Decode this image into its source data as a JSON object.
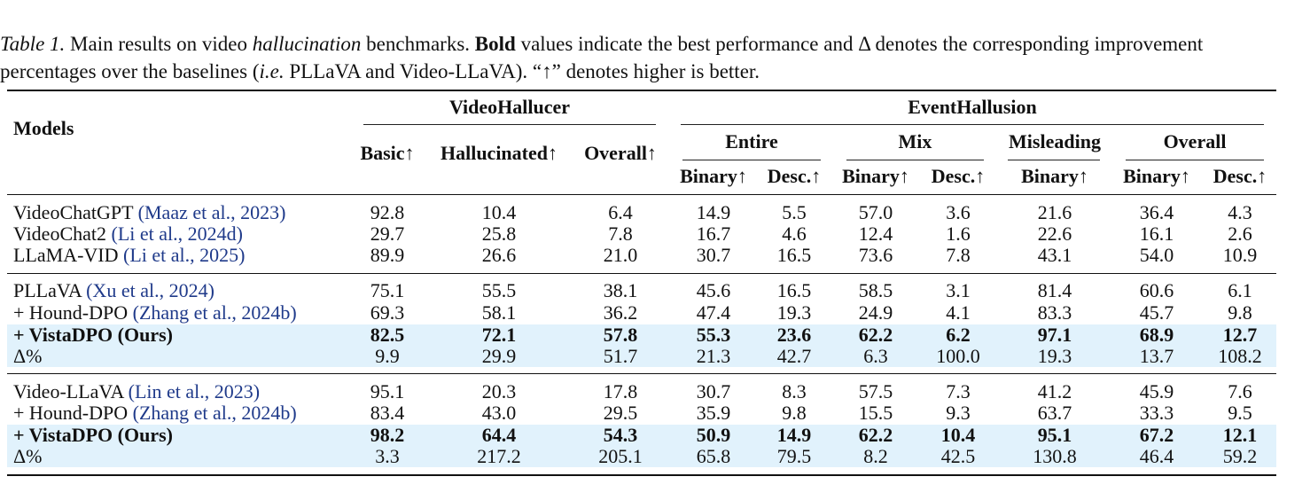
{
  "caption": {
    "label": "Table 1.",
    "p1": " Main results on video ",
    "italic1": "hallucination",
    "p2": " benchmarks. ",
    "bold1": "Bold",
    "p3": " values indicate the best performance and Δ denotes the corresponding improvement percentages over the baselines (",
    "italic2": "i.e.",
    "p4": " PLLaVA and Video-LLaVA). “↑” denotes higher is better."
  },
  "headers": {
    "models": "Models",
    "videohallucer": "VideoHallucer",
    "eventhallusion": "EventHallusion",
    "basic": "Basic↑",
    "hallucinated": "Hallucinated↑",
    "overall": "Overall↑",
    "entire": "Entire",
    "mix": "Mix",
    "misleading": "Misleading",
    "overall2": "Overall",
    "binary": "Binary↑",
    "desc": "Desc.↑"
  },
  "rows": [
    {
      "name": "VideoChatGPT",
      "cite": "(Maaz et al., 2023)",
      "values": [
        "92.8",
        "10.4",
        "6.4",
        "14.9",
        "5.5",
        "57.0",
        "3.6",
        "21.6",
        "36.4",
        "4.3"
      ]
    },
    {
      "name": "VideoChat2",
      "cite": "(Li et al., 2024d)",
      "values": [
        "29.7",
        "25.8",
        "7.8",
        "16.7",
        "4.6",
        "12.4",
        "1.6",
        "22.6",
        "16.1",
        "2.6"
      ]
    },
    {
      "name": "LLaMA-VID",
      "cite": "(Li et al., 2025)",
      "values": [
        "89.9",
        "26.6",
        "21.0",
        "30.7",
        "16.5",
        "73.6",
        "7.8",
        "43.1",
        "54.0",
        "10.9"
      ]
    },
    {
      "name": "PLLaVA",
      "cite": "(Xu et al., 2024)",
      "values": [
        "75.1",
        "55.5",
        "38.1",
        "45.6",
        "16.5",
        "58.5",
        "3.1",
        "81.4",
        "60.6",
        "6.1"
      ]
    },
    {
      "name": "+ Hound-DPO",
      "cite": "(Zhang et al., 2024b)",
      "values": [
        "69.3",
        "58.1",
        "36.2",
        "47.4",
        "19.3",
        "24.9",
        "4.1",
        "83.3",
        "45.7",
        "9.8"
      ]
    },
    {
      "name": "+ VistaDPO (Ours)",
      "cite": "",
      "values": [
        "82.5",
        "72.1",
        "57.8",
        "55.3",
        "23.6",
        "62.2",
        "6.2",
        "97.1",
        "68.9",
        "12.7"
      ]
    },
    {
      "name": "Δ%",
      "cite": "",
      "values": [
        "9.9",
        "29.9",
        "51.7",
        "21.3",
        "42.7",
        "6.3",
        "100.0",
        "19.3",
        "13.7",
        "108.2"
      ]
    },
    {
      "name": "Video-LLaVA",
      "cite": "(Lin et al., 2023)",
      "values": [
        "95.1",
        "20.3",
        "17.8",
        "30.7",
        "8.3",
        "57.5",
        "7.3",
        "41.2",
        "45.9",
        "7.6"
      ]
    },
    {
      "name": "+ Hound-DPO",
      "cite": "(Zhang et al., 2024b)",
      "values": [
        "83.4",
        "43.0",
        "29.5",
        "35.9",
        "9.8",
        "15.5",
        "9.3",
        "63.7",
        "33.3",
        "9.5"
      ]
    },
    {
      "name": "+ VistaDPO (Ours)",
      "cite": "",
      "values": [
        "98.2",
        "64.4",
        "54.3",
        "50.9",
        "14.9",
        "62.2",
        "10.4",
        "95.1",
        "67.2",
        "12.1"
      ]
    },
    {
      "name": "Δ%",
      "cite": "",
      "values": [
        "3.3",
        "217.2",
        "205.1",
        "65.8",
        "79.5",
        "8.2",
        "42.5",
        "130.8",
        "46.4",
        "59.2"
      ]
    }
  ]
}
